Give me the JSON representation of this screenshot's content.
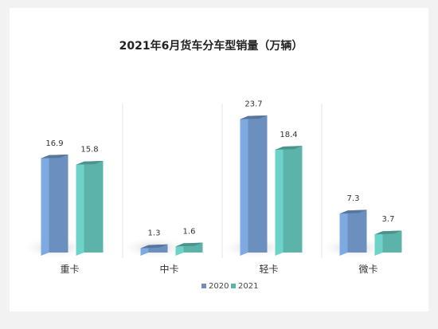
{
  "chart_data": {
    "type": "bar",
    "title": "2021年6月货车分车型销量（万辆）",
    "categories": [
      "重卡",
      "中卡",
      "轻卡",
      "微卡"
    ],
    "series": [
      {
        "name": "2020",
        "values": [
          16.9,
          1.3,
          23.7,
          7.3
        ],
        "color": "#6b8fbf"
      },
      {
        "name": "2021",
        "values": [
          15.8,
          1.6,
          18.4,
          3.7
        ],
        "color": "#5cb3aa"
      }
    ],
    "ylim": [
      0,
      24.2
    ],
    "grid": false,
    "legend": "bottom"
  }
}
